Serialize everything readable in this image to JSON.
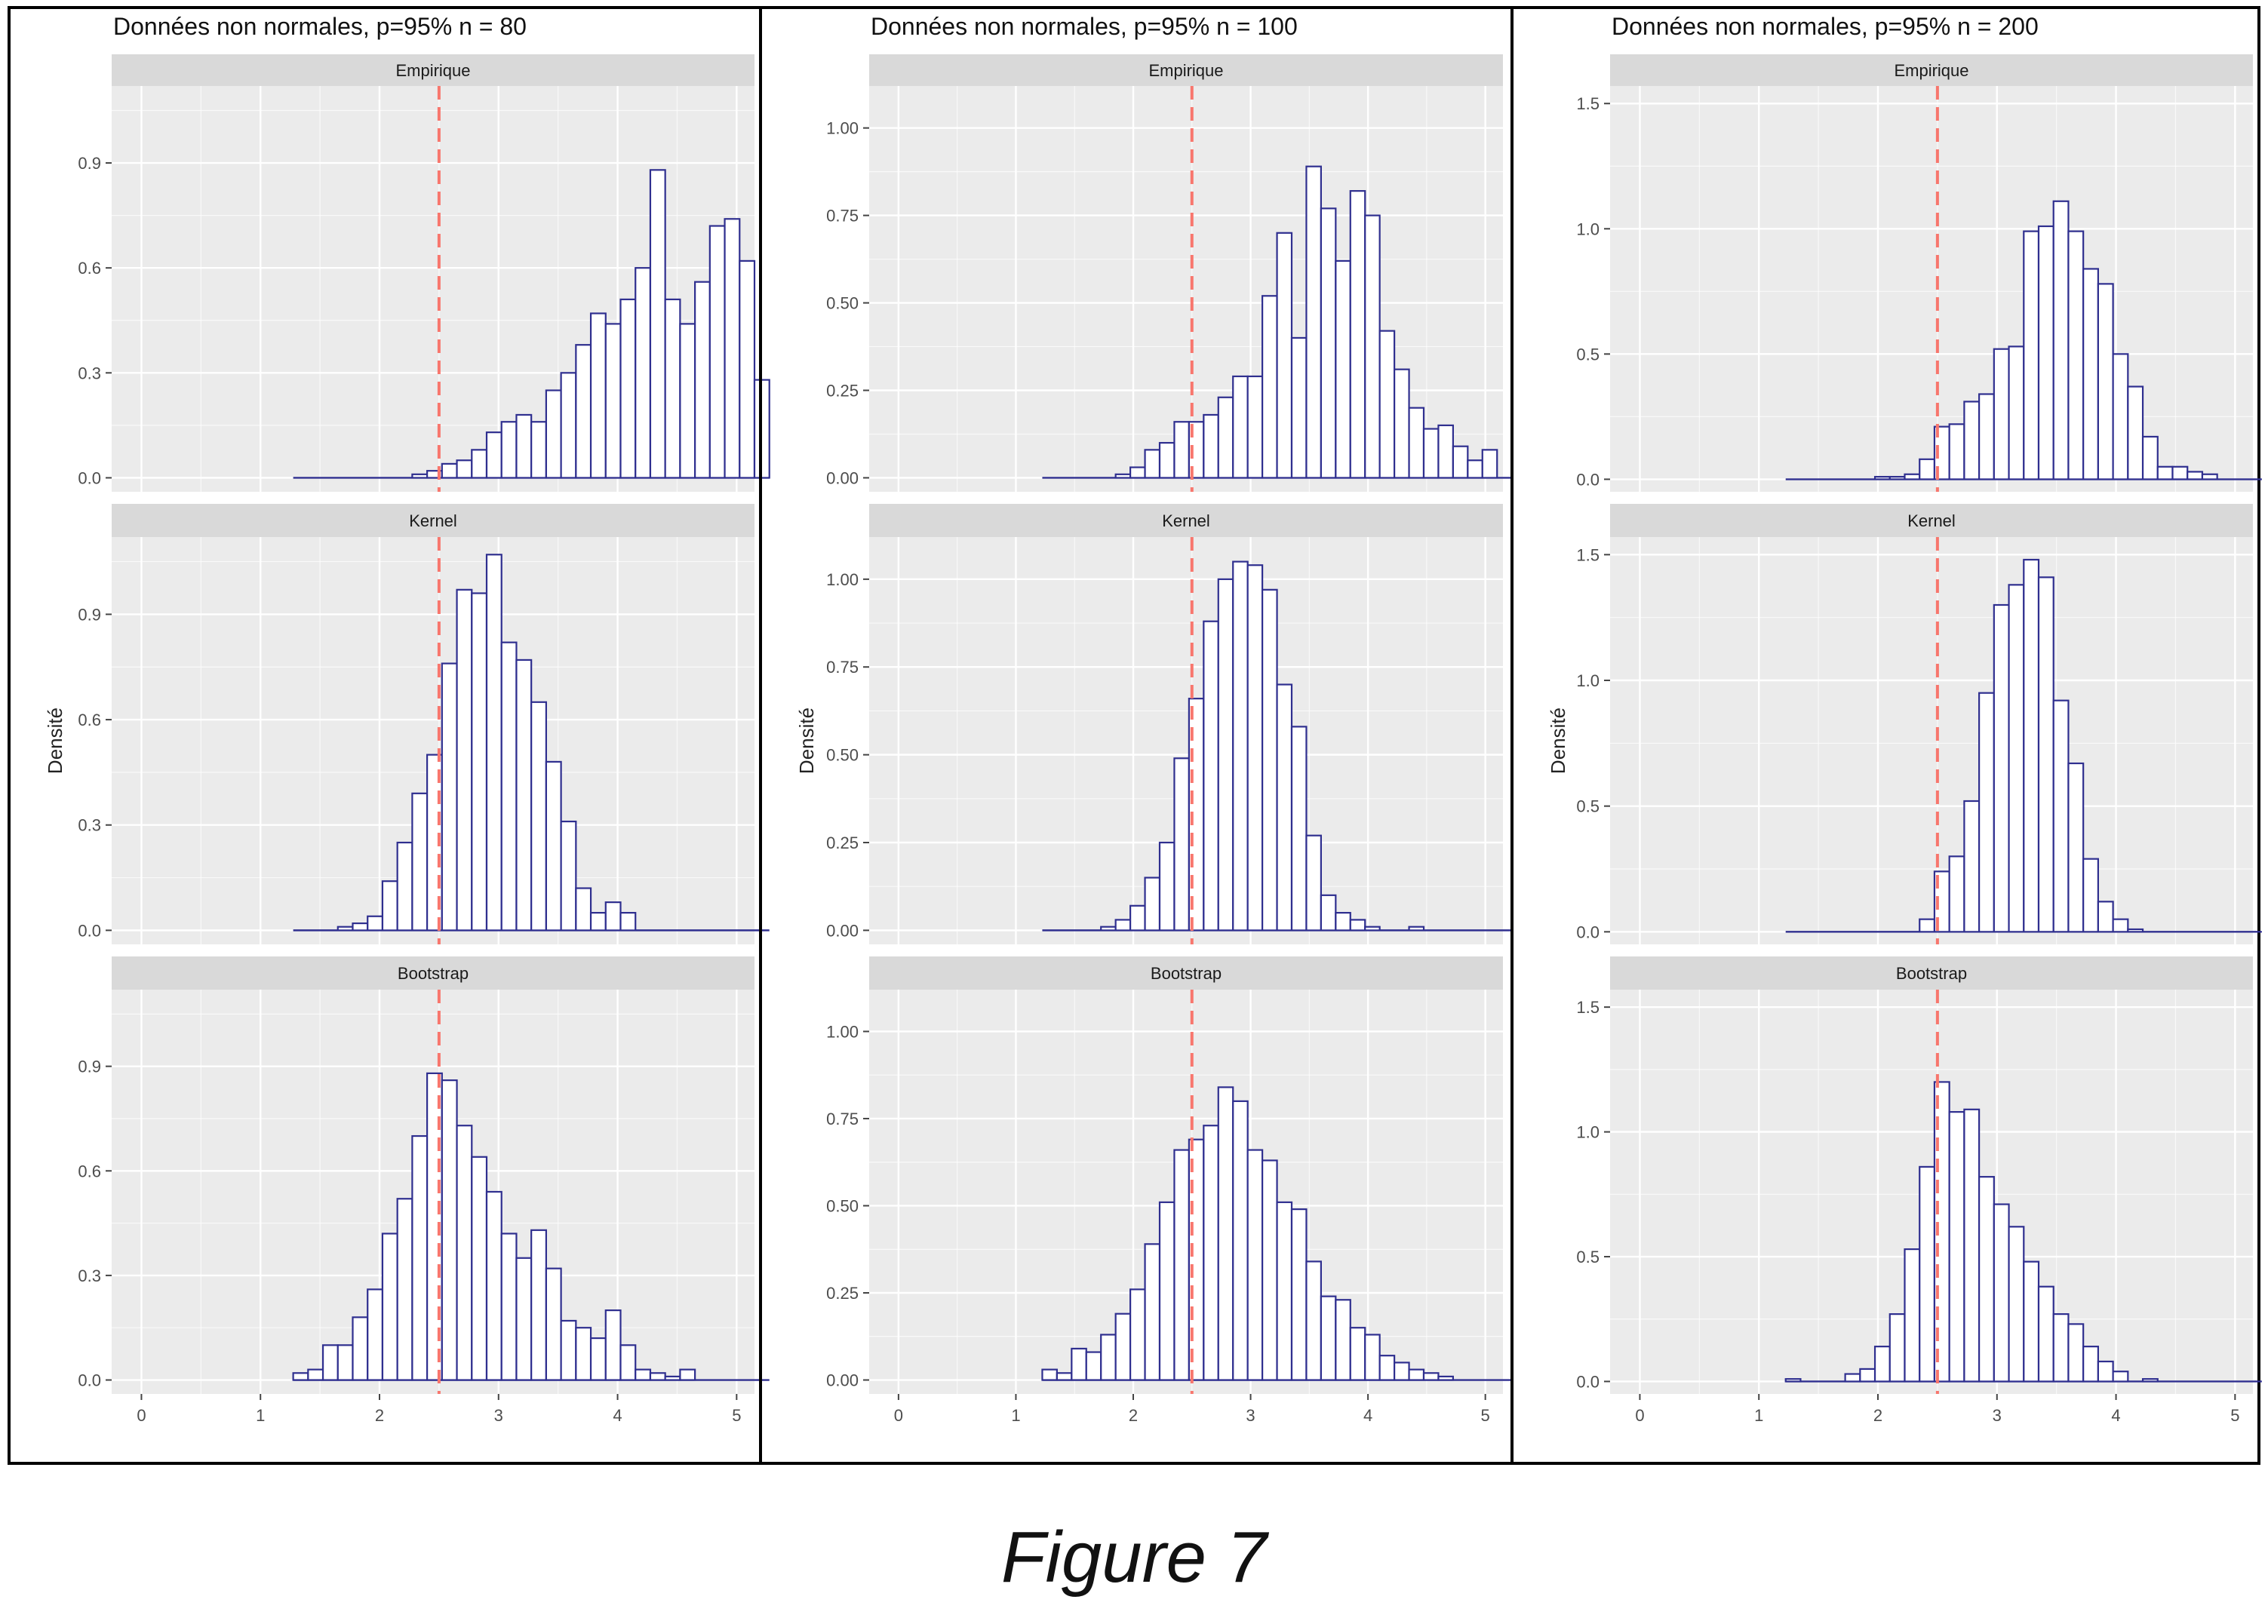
{
  "caption": "Figure 7",
  "colors": {
    "panel_bg": "#ebebeb",
    "strip_bg": "#d9d9d9",
    "grid": "#ffffff",
    "bar_edge": "#2f2f8f",
    "bar_fill": "#ffffff",
    "ref_line": "#f8766d",
    "frame": "#000000"
  },
  "chart_data": [
    {
      "type": "bar",
      "title": "Données non normales, p=95% n = 80",
      "ylabel": "Densité",
      "xlabel": "",
      "x_ticks": [
        "0",
        "1",
        "2",
        "3",
        "4",
        "5"
      ],
      "xlim": [
        -0.25,
        5.15
      ],
      "reference_line_x": 2.5,
      "bin_start": 1.275,
      "bin_width": 0.125,
      "facets": [
        {
          "label": "Empirique",
          "ylim": [
            -0.04,
            1.12
          ],
          "y_ticks": [
            0.0,
            0.3,
            0.6,
            0.9
          ],
          "y_tick_labels": [
            "0.0",
            "0.3",
            "0.6",
            "0.9"
          ],
          "values": [
            0,
            0,
            0,
            0,
            0,
            0,
            0,
            0,
            0.01,
            0.02,
            0.04,
            0.05,
            0.08,
            0.13,
            0.16,
            0.18,
            0.16,
            0.25,
            0.3,
            0.38,
            0.47,
            0.44,
            0.51,
            0.6,
            0.88,
            0.51,
            0.44,
            0.56,
            0.72,
            0.74,
            0.62,
            0.28
          ]
        },
        {
          "label": "Kernel",
          "ylim": [
            -0.04,
            1.12
          ],
          "y_ticks": [
            0.0,
            0.3,
            0.6,
            0.9
          ],
          "y_tick_labels": [
            "0.0",
            "0.3",
            "0.6",
            "0.9"
          ],
          "values": [
            0,
            0,
            0,
            0.01,
            0.02,
            0.04,
            0.14,
            0.25,
            0.39,
            0.5,
            0.76,
            0.97,
            0.96,
            1.07,
            0.82,
            0.77,
            0.65,
            0.48,
            0.31,
            0.12,
            0.05,
            0.08,
            0.05,
            0,
            0,
            0,
            0,
            0,
            0,
            0,
            0,
            0
          ]
        },
        {
          "label": "Bootstrap",
          "ylim": [
            -0.04,
            1.12
          ],
          "y_ticks": [
            0.0,
            0.3,
            0.6,
            0.9
          ],
          "y_tick_labels": [
            "0.0",
            "0.3",
            "0.6",
            "0.9"
          ],
          "values": [
            0.02,
            0.03,
            0.1,
            0.1,
            0.18,
            0.26,
            0.42,
            0.52,
            0.7,
            0.88,
            0.86,
            0.73,
            0.64,
            0.54,
            0.42,
            0.35,
            0.43,
            0.32,
            0.17,
            0.15,
            0.12,
            0.2,
            0.1,
            0.03,
            0.02,
            0.01,
            0.03,
            0,
            0,
            0,
            0,
            0
          ]
        }
      ]
    },
    {
      "type": "bar",
      "title": "Données non normales, p=95% n = 100",
      "ylabel": "Densité",
      "xlabel": "",
      "x_ticks": [
        "0",
        "1",
        "2",
        "3",
        "4",
        "5"
      ],
      "xlim": [
        -0.25,
        5.15
      ],
      "reference_line_x": 2.5,
      "bin_start": 1.225,
      "bin_width": 0.125,
      "facets": [
        {
          "label": "Empirique",
          "ylim": [
            -0.04,
            1.12
          ],
          "y_ticks": [
            0.0,
            0.25,
            0.5,
            0.75,
            1.0
          ],
          "y_tick_labels": [
            "0.00",
            "0.25",
            "0.50",
            "0.75",
            "1.00"
          ],
          "values": [
            0,
            0,
            0,
            0,
            0,
            0.01,
            0.03,
            0.08,
            0.1,
            0.16,
            0.16,
            0.18,
            0.23,
            0.29,
            0.29,
            0.52,
            0.7,
            0.4,
            0.89,
            0.77,
            0.62,
            0.82,
            0.75,
            0.42,
            0.31,
            0.2,
            0.14,
            0.15,
            0.09,
            0.05,
            0.08,
            0
          ]
        },
        {
          "label": "Kernel",
          "ylim": [
            -0.04,
            1.12
          ],
          "y_ticks": [
            0.0,
            0.25,
            0.5,
            0.75,
            1.0
          ],
          "y_tick_labels": [
            "0.00",
            "0.25",
            "0.50",
            "0.75",
            "1.00"
          ],
          "values": [
            0,
            0,
            0,
            0,
            0.01,
            0.03,
            0.07,
            0.15,
            0.25,
            0.49,
            0.66,
            0.88,
            1.0,
            1.05,
            1.04,
            0.97,
            0.7,
            0.58,
            0.27,
            0.1,
            0.05,
            0.03,
            0.01,
            0,
            0,
            0.01,
            0,
            0,
            0,
            0,
            0,
            0
          ]
        },
        {
          "label": "Bootstrap",
          "ylim": [
            -0.04,
            1.12
          ],
          "y_ticks": [
            0.0,
            0.25,
            0.5,
            0.75,
            1.0
          ],
          "y_tick_labels": [
            "0.00",
            "0.25",
            "0.50",
            "0.75",
            "1.00"
          ],
          "values": [
            0.03,
            0.02,
            0.09,
            0.08,
            0.13,
            0.19,
            0.26,
            0.39,
            0.51,
            0.66,
            0.69,
            0.73,
            0.84,
            0.8,
            0.66,
            0.63,
            0.51,
            0.49,
            0.34,
            0.24,
            0.23,
            0.15,
            0.13,
            0.07,
            0.05,
            0.03,
            0.02,
            0.01,
            0,
            0,
            0,
            0
          ]
        }
      ]
    },
    {
      "type": "bar",
      "title": "Données non normales, p=95% n = 200",
      "ylabel": "Densité",
      "xlabel": "",
      "x_ticks": [
        "0",
        "1",
        "2",
        "3",
        "4",
        "5"
      ],
      "xlim": [
        -0.25,
        5.15
      ],
      "reference_line_x": 2.5,
      "bin_start": 1.225,
      "bin_width": 0.125,
      "facets": [
        {
          "label": "Empirique",
          "ylim": [
            -0.05,
            1.57
          ],
          "y_ticks": [
            0.0,
            0.5,
            1.0,
            1.5
          ],
          "y_tick_labels": [
            "0.0",
            "0.5",
            "1.0",
            "1.5"
          ],
          "values": [
            0,
            0,
            0,
            0,
            0,
            0,
            0.01,
            0.01,
            0.02,
            0.08,
            0.21,
            0.22,
            0.31,
            0.34,
            0.52,
            0.53,
            0.99,
            1.01,
            1.11,
            0.99,
            0.84,
            0.78,
            0.5,
            0.37,
            0.17,
            0.05,
            0.05,
            0.03,
            0.02,
            0,
            0,
            0
          ]
        },
        {
          "label": "Kernel",
          "ylim": [
            -0.05,
            1.57
          ],
          "y_ticks": [
            0.0,
            0.5,
            1.0,
            1.5
          ],
          "y_tick_labels": [
            "0.0",
            "0.5",
            "1.0",
            "1.5"
          ],
          "values": [
            0,
            0,
            0,
            0,
            0,
            0,
            0,
            0,
            0,
            0.05,
            0.24,
            0.3,
            0.52,
            0.95,
            1.3,
            1.38,
            1.48,
            1.41,
            0.92,
            0.67,
            0.29,
            0.12,
            0.05,
            0.01,
            0,
            0,
            0,
            0,
            0,
            0,
            0,
            0
          ]
        },
        {
          "label": "Bootstrap",
          "ylim": [
            -0.05,
            1.57
          ],
          "y_ticks": [
            0.0,
            0.5,
            1.0,
            1.5
          ],
          "y_tick_labels": [
            "0.0",
            "0.5",
            "1.0",
            "1.5"
          ],
          "values": [
            0.01,
            0,
            0,
            0,
            0.03,
            0.05,
            0.14,
            0.27,
            0.53,
            0.86,
            1.2,
            1.08,
            1.09,
            0.82,
            0.71,
            0.62,
            0.48,
            0.38,
            0.27,
            0.23,
            0.14,
            0.08,
            0.04,
            0,
            0.01,
            0,
            0,
            0,
            0,
            0,
            0,
            0
          ]
        }
      ]
    }
  ]
}
